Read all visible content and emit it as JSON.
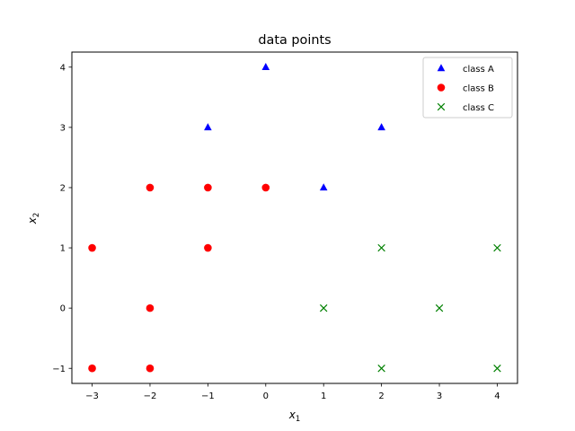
{
  "chart_data": {
    "type": "scatter",
    "title": "data points",
    "xlabel": {
      "main": "x",
      "sub": "1"
    },
    "ylabel": {
      "main": "x",
      "sub": "2"
    },
    "xlim": [
      -3.35,
      4.35
    ],
    "ylim": [
      -1.25,
      4.25
    ],
    "xticks": [
      {
        "value": -3,
        "label": "−3"
      },
      {
        "value": -2,
        "label": "−2"
      },
      {
        "value": -1,
        "label": "−1"
      },
      {
        "value": 0,
        "label": "0"
      },
      {
        "value": 1,
        "label": "1"
      },
      {
        "value": 2,
        "label": "2"
      },
      {
        "value": 3,
        "label": "3"
      },
      {
        "value": 4,
        "label": "4"
      }
    ],
    "yticks": [
      {
        "value": -1,
        "label": "−1"
      },
      {
        "value": 0,
        "label": "0"
      },
      {
        "value": 1,
        "label": "1"
      },
      {
        "value": 2,
        "label": "2"
      },
      {
        "value": 3,
        "label": "3"
      },
      {
        "value": 4,
        "label": "4"
      }
    ],
    "grid": false,
    "legend_position": "top-right",
    "series": [
      {
        "name": "class A",
        "marker": "triangle",
        "color": "#0000ff",
        "points": [
          [
            -1,
            3
          ],
          [
            0,
            4
          ],
          [
            1,
            2
          ],
          [
            2,
            3
          ]
        ]
      },
      {
        "name": "class B",
        "marker": "circle",
        "color": "#ff0000",
        "points": [
          [
            -3,
            1
          ],
          [
            -3,
            -1
          ],
          [
            -2,
            2
          ],
          [
            -2,
            0
          ],
          [
            -2,
            -1
          ],
          [
            -1,
            2
          ],
          [
            -1,
            1
          ],
          [
            0,
            2
          ]
        ]
      },
      {
        "name": "class C",
        "marker": "x",
        "color": "#008000",
        "points": [
          [
            1,
            0
          ],
          [
            2,
            1
          ],
          [
            2,
            -1
          ],
          [
            3,
            0
          ],
          [
            4,
            1
          ],
          [
            4,
            -1
          ]
        ]
      }
    ]
  }
}
